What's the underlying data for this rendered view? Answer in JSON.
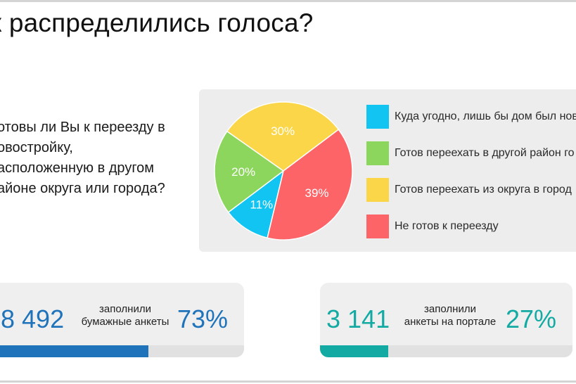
{
  "title": "к распределились голоса?",
  "question": {
    "lines": [
      "отовы ли Вы к переезду в",
      "овостройку,",
      "асположенную в другом",
      "айоне округа или города?"
    ]
  },
  "chart_data": {
    "type": "pie",
    "slices": [
      {
        "label": "Куда угодно, лишь бы дом был нов",
        "value": 11,
        "display": "11%",
        "color": "#12c4f2"
      },
      {
        "label": "Готов переехать в другой район го",
        "value": 20,
        "display": "20%",
        "color": "#8dd65e"
      },
      {
        "label": "Готов переехать из округа в город",
        "value": 30,
        "display": "30%",
        "color": "#fbd649"
      },
      {
        "label": "Не готов к переезду",
        "value": 39,
        "display": "39%",
        "color": "#fc6467"
      }
    ],
    "legend_position": "right"
  },
  "stats": {
    "paper": {
      "count": "8 492",
      "caption_line1": "заполнили",
      "caption_line2": "бумажные анкеты",
      "percent": "73%",
      "share": 0.73,
      "color": "#1e73ba"
    },
    "portal": {
      "count": "3 141",
      "caption_line1": "заполнили",
      "caption_line2": "анкеты на портале",
      "percent": "27%",
      "share": 0.27,
      "color": "#12aaa2"
    }
  }
}
